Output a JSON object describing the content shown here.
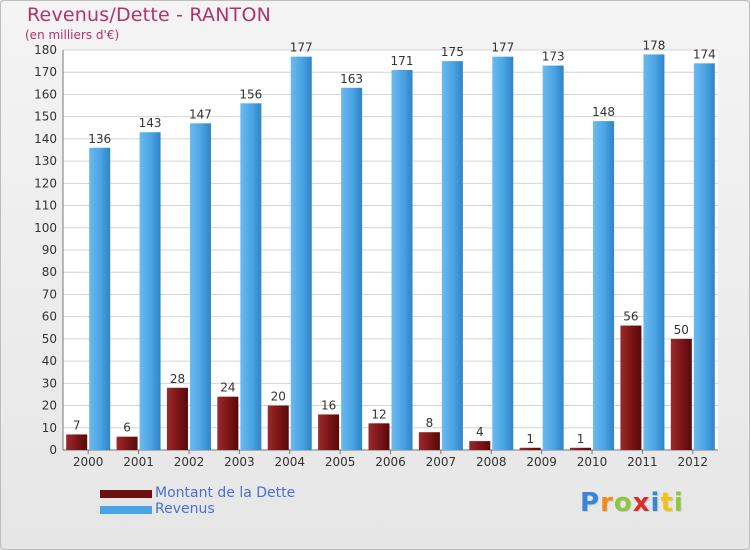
{
  "header": {
    "title": "Revenus/Dette - RANTON",
    "subtitle": "(en milliers d'€)"
  },
  "legend": {
    "items": [
      {
        "label": "Montant de la Dette",
        "color": "#6b0f10"
      },
      {
        "label": "Revenus",
        "color": "#4aa3e3"
      }
    ]
  },
  "logo": {
    "letters": [
      {
        "ch": "P",
        "color": "#3a86d6"
      },
      {
        "ch": "r",
        "color": "#f08a1c"
      },
      {
        "ch": "o",
        "color": "#8dc63f"
      },
      {
        "ch": "x",
        "color": "#e02b2b"
      },
      {
        "ch": "i",
        "color": "#3a86d6"
      },
      {
        "ch": "t",
        "color": "#f2c21a"
      },
      {
        "ch": "i",
        "color": "#8dc63f"
      }
    ]
  },
  "chart_data": {
    "type": "bar",
    "title": "Revenus/Dette - RANTON",
    "subtitle": "(en milliers d'€)",
    "categories": [
      "2000",
      "2001",
      "2002",
      "2003",
      "2004",
      "2005",
      "2006",
      "2007",
      "2008",
      "2009",
      "2010",
      "2011",
      "2012"
    ],
    "series": [
      {
        "name": "Montant de la Dette",
        "color": "#7a1416",
        "values": [
          7,
          6,
          28,
          24,
          20,
          16,
          12,
          8,
          4,
          1,
          1,
          56,
          50
        ]
      },
      {
        "name": "Revenus",
        "color": "#4aa3e3",
        "values": [
          136,
          143,
          147,
          156,
          177,
          163,
          171,
          175,
          177,
          173,
          148,
          178,
          174
        ]
      }
    ],
    "ylim": [
      0,
      180
    ],
    "yticks": [
      0,
      10,
      20,
      30,
      40,
      50,
      60,
      70,
      80,
      90,
      100,
      110,
      120,
      130,
      140,
      150,
      160,
      170,
      180
    ],
    "grid": true,
    "legend_position": "bottom-left"
  }
}
